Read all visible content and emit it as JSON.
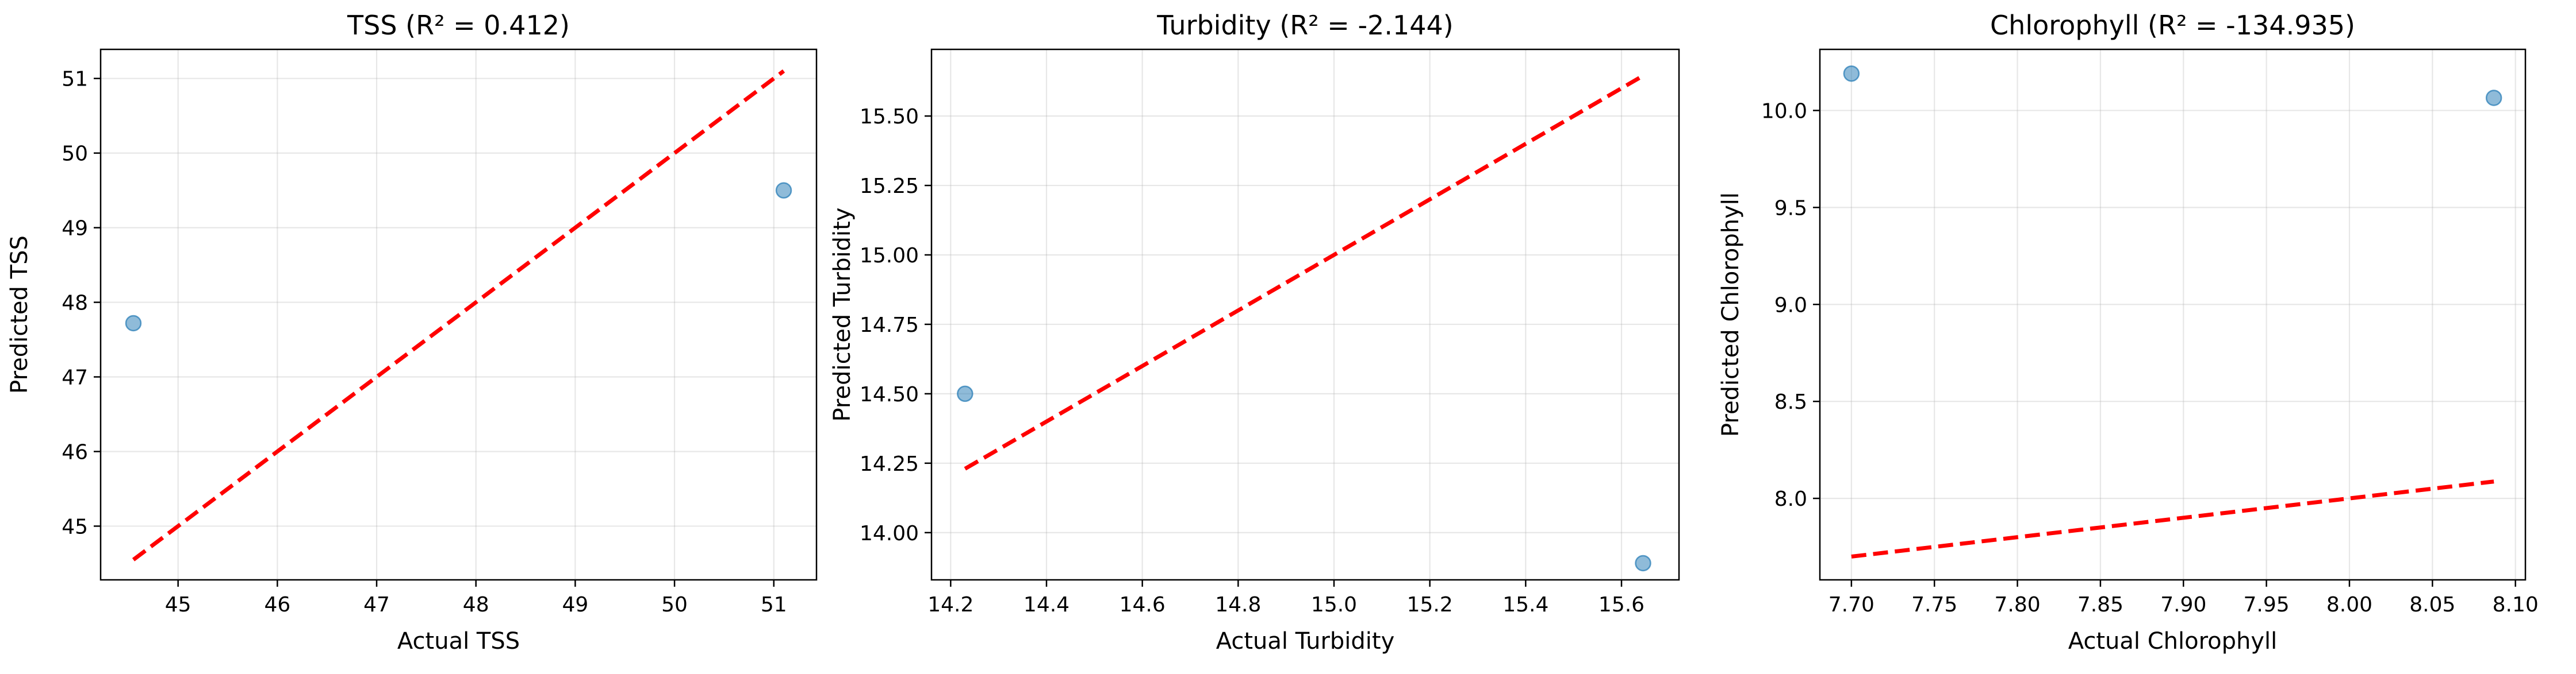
{
  "chart_data": [
    {
      "type": "scatter",
      "title": "TSS (R² = 0.412)",
      "xlabel": "Actual TSS",
      "ylabel": "Predicted TSS",
      "xlim": [
        44.22,
        51.43
      ],
      "ylim": [
        44.28,
        51.39
      ],
      "x_ticks": [
        45,
        46,
        47,
        48,
        49,
        50,
        51
      ],
      "y_ticks": [
        45,
        46,
        47,
        48,
        49,
        50,
        51
      ],
      "tick_decimals": 0,
      "grid": true,
      "points": [
        {
          "x": 44.55,
          "y": 47.72
        },
        {
          "x": 51.1,
          "y": 49.5
        }
      ],
      "reference_line": {
        "from": [
          44.55,
          44.55
        ],
        "to": [
          51.1,
          51.1
        ]
      },
      "point_color": "#1f77b4",
      "line_color": "#ff0000"
    },
    {
      "type": "scatter",
      "title": "Turbidity (R² = -2.144)",
      "xlabel": "Actual Turbidity",
      "ylabel": "Predicted Turbidity",
      "xlim": [
        14.16,
        15.72
      ],
      "ylim": [
        13.83,
        15.74
      ],
      "x_ticks": [
        14.2,
        14.4,
        14.6,
        14.8,
        15.0,
        15.2,
        15.4,
        15.6
      ],
      "y_ticks": [
        14.0,
        14.25,
        14.5,
        14.75,
        15.0,
        15.25,
        15.5
      ],
      "x_tick_labels": [
        "14.2",
        "14.4",
        "14.6",
        "14.8",
        "15.0",
        "15.2",
        "15.4",
        "15.6"
      ],
      "y_tick_labels": [
        "14.00",
        "14.25",
        "14.50",
        "14.75",
        "15.00",
        "15.25",
        "15.50"
      ],
      "grid": true,
      "points": [
        {
          "x": 14.23,
          "y": 14.5
        },
        {
          "x": 15.645,
          "y": 13.89
        }
      ],
      "reference_line": {
        "from": [
          14.23,
          14.23
        ],
        "to": [
          15.645,
          15.645
        ]
      },
      "point_color": "#1f77b4",
      "line_color": "#ff0000"
    },
    {
      "type": "scatter",
      "title": "Chlorophyll (R² = -134.935)",
      "xlabel": "Actual Chlorophyll",
      "ylabel": "Predicted Chlorophyll",
      "xlim": [
        7.681,
        8.106
      ],
      "ylim": [
        7.58,
        10.315
      ],
      "x_ticks": [
        7.7,
        7.75,
        7.8,
        7.85,
        7.9,
        7.95,
        8.0,
        8.05,
        8.1
      ],
      "y_ticks": [
        8.0,
        8.5,
        9.0,
        9.5,
        10.0
      ],
      "x_tick_labels": [
        "7.70",
        "7.75",
        "7.80",
        "7.85",
        "7.90",
        "7.95",
        "8.00",
        "8.05",
        "8.10"
      ],
      "y_tick_labels": [
        "8.0",
        "8.5",
        "9.0",
        "9.5",
        "10.0"
      ],
      "grid": true,
      "points": [
        {
          "x": 7.7,
          "y": 10.19
        },
        {
          "x": 8.087,
          "y": 10.065
        }
      ],
      "reference_line": {
        "from": [
          7.7,
          7.7
        ],
        "to": [
          8.087,
          8.087
        ]
      },
      "point_color": "#1f77b4",
      "line_color": "#ff0000"
    }
  ]
}
